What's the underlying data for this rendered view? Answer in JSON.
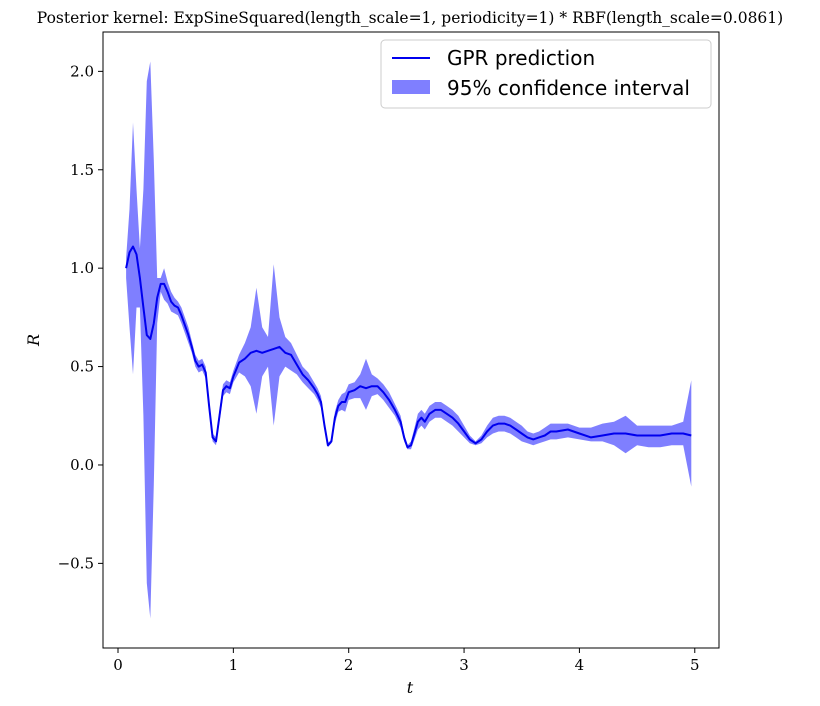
{
  "chart_data": {
    "type": "line",
    "title": "Posterior kernel: ExpSineSquared(length_scale=1, periodicity=1) * RBF(length_scale=0.0861)",
    "xlabel": "t",
    "ylabel": "R",
    "xlim": [
      -0.13,
      5.21
    ],
    "ylim": [
      -0.93,
      2.2
    ],
    "xticks": [
      0,
      1,
      2,
      3,
      4,
      5
    ],
    "yticks": [
      -0.5,
      0.0,
      0.5,
      1.0,
      1.5,
      2.0
    ],
    "xtick_labels": [
      "0",
      "1",
      "2",
      "3",
      "4",
      "5"
    ],
    "ytick_labels": [
      "−0.5",
      "0.0",
      "0.5",
      "1.0",
      "1.5",
      "2.0"
    ],
    "grid": false,
    "legend_position": "top-right",
    "series": [
      {
        "name": "GPR prediction",
        "kind": "line",
        "color": "#0000ee",
        "x": [
          0.07,
          0.1,
          0.13,
          0.16,
          0.19,
          0.22,
          0.25,
          0.28,
          0.31,
          0.34,
          0.37,
          0.4,
          0.43,
          0.46,
          0.49,
          0.52,
          0.55,
          0.58,
          0.61,
          0.64,
          0.67,
          0.7,
          0.73,
          0.76,
          0.79,
          0.82,
          0.85,
          0.88,
          0.91,
          0.94,
          0.97,
          1.0,
          1.05,
          1.1,
          1.15,
          1.2,
          1.25,
          1.3,
          1.35,
          1.4,
          1.45,
          1.5,
          1.55,
          1.6,
          1.65,
          1.7,
          1.73,
          1.76,
          1.79,
          1.82,
          1.85,
          1.88,
          1.91,
          1.94,
          1.97,
          2.0,
          2.05,
          2.1,
          2.15,
          2.2,
          2.25,
          2.3,
          2.35,
          2.4,
          2.45,
          2.48,
          2.51,
          2.54,
          2.57,
          2.6,
          2.63,
          2.66,
          2.7,
          2.75,
          2.8,
          2.85,
          2.9,
          2.95,
          3.0,
          3.05,
          3.1,
          3.15,
          3.2,
          3.25,
          3.3,
          3.35,
          3.4,
          3.45,
          3.5,
          3.55,
          3.6,
          3.65,
          3.7,
          3.75,
          3.8,
          3.9,
          4.0,
          4.1,
          4.2,
          4.3,
          4.4,
          4.5,
          4.6,
          4.7,
          4.8,
          4.9,
          4.97
        ],
        "y": [
          1.0,
          1.08,
          1.11,
          1.07,
          0.95,
          0.8,
          0.66,
          0.64,
          0.72,
          0.85,
          0.92,
          0.92,
          0.88,
          0.83,
          0.81,
          0.8,
          0.76,
          0.71,
          0.66,
          0.6,
          0.53,
          0.5,
          0.51,
          0.47,
          0.3,
          0.14,
          0.12,
          0.25,
          0.38,
          0.4,
          0.39,
          0.45,
          0.52,
          0.54,
          0.57,
          0.58,
          0.57,
          0.58,
          0.59,
          0.6,
          0.57,
          0.56,
          0.51,
          0.46,
          0.43,
          0.39,
          0.36,
          0.32,
          0.2,
          0.1,
          0.12,
          0.24,
          0.3,
          0.32,
          0.32,
          0.37,
          0.38,
          0.4,
          0.39,
          0.4,
          0.4,
          0.37,
          0.33,
          0.28,
          0.22,
          0.14,
          0.09,
          0.1,
          0.16,
          0.22,
          0.24,
          0.22,
          0.26,
          0.28,
          0.28,
          0.26,
          0.24,
          0.21,
          0.17,
          0.13,
          0.11,
          0.13,
          0.17,
          0.2,
          0.21,
          0.21,
          0.2,
          0.18,
          0.16,
          0.14,
          0.13,
          0.14,
          0.15,
          0.17,
          0.17,
          0.18,
          0.16,
          0.14,
          0.15,
          0.16,
          0.16,
          0.15,
          0.15,
          0.15,
          0.16,
          0.16,
          0.15
        ]
      },
      {
        "name": "95% confidence interval",
        "kind": "band",
        "color": "#0000ff",
        "opacity": 0.5,
        "x": [
          0.07,
          0.1,
          0.13,
          0.16,
          0.19,
          0.22,
          0.25,
          0.28,
          0.31,
          0.34,
          0.37,
          0.4,
          0.43,
          0.46,
          0.49,
          0.52,
          0.55,
          0.58,
          0.61,
          0.64,
          0.67,
          0.7,
          0.73,
          0.76,
          0.79,
          0.82,
          0.85,
          0.88,
          0.91,
          0.94,
          0.97,
          1.0,
          1.05,
          1.1,
          1.15,
          1.2,
          1.25,
          1.3,
          1.35,
          1.4,
          1.45,
          1.5,
          1.55,
          1.6,
          1.65,
          1.7,
          1.73,
          1.76,
          1.79,
          1.82,
          1.85,
          1.88,
          1.91,
          1.94,
          1.97,
          2.0,
          2.05,
          2.1,
          2.15,
          2.2,
          2.25,
          2.3,
          2.35,
          2.4,
          2.45,
          2.48,
          2.51,
          2.54,
          2.57,
          2.6,
          2.63,
          2.66,
          2.7,
          2.75,
          2.8,
          2.85,
          2.9,
          2.95,
          3.0,
          3.05,
          3.1,
          3.15,
          3.2,
          3.25,
          3.3,
          3.35,
          3.4,
          3.45,
          3.5,
          3.55,
          3.6,
          3.65,
          3.7,
          3.75,
          3.8,
          3.9,
          4.0,
          4.1,
          4.2,
          4.3,
          4.4,
          4.5,
          4.6,
          4.7,
          4.8,
          4.9,
          4.97
        ],
        "upper": [
          1.05,
          1.3,
          1.74,
          1.4,
          1.1,
          1.4,
          1.95,
          2.05,
          1.55,
          0.95,
          0.95,
          1.0,
          0.93,
          0.88,
          0.85,
          0.83,
          0.8,
          0.75,
          0.7,
          0.63,
          0.56,
          0.53,
          0.54,
          0.5,
          0.33,
          0.16,
          0.14,
          0.28,
          0.41,
          0.43,
          0.42,
          0.48,
          0.56,
          0.62,
          0.7,
          0.9,
          0.7,
          0.65,
          1.02,
          0.75,
          0.65,
          0.62,
          0.56,
          0.5,
          0.47,
          0.42,
          0.39,
          0.35,
          0.22,
          0.11,
          0.13,
          0.27,
          0.33,
          0.36,
          0.37,
          0.41,
          0.42,
          0.46,
          0.54,
          0.46,
          0.44,
          0.41,
          0.37,
          0.31,
          0.25,
          0.16,
          0.1,
          0.12,
          0.19,
          0.26,
          0.28,
          0.26,
          0.3,
          0.32,
          0.32,
          0.3,
          0.28,
          0.25,
          0.2,
          0.15,
          0.12,
          0.15,
          0.2,
          0.24,
          0.25,
          0.25,
          0.24,
          0.22,
          0.2,
          0.17,
          0.16,
          0.17,
          0.19,
          0.21,
          0.21,
          0.21,
          0.19,
          0.19,
          0.21,
          0.22,
          0.25,
          0.2,
          0.2,
          0.2,
          0.2,
          0.22,
          0.43
        ]
      },
      {
        "name": "95% confidence interval lower",
        "kind": "band-lower",
        "lower": [
          0.95,
          0.7,
          0.46,
          0.8,
          0.8,
          0.25,
          -0.6,
          -0.78,
          -0.1,
          0.72,
          0.88,
          0.84,
          0.82,
          0.78,
          0.77,
          0.76,
          0.72,
          0.67,
          0.62,
          0.57,
          0.5,
          0.47,
          0.48,
          0.44,
          0.27,
          0.12,
          0.1,
          0.22,
          0.35,
          0.37,
          0.36,
          0.42,
          0.47,
          0.45,
          0.4,
          0.26,
          0.45,
          0.5,
          0.2,
          0.45,
          0.5,
          0.48,
          0.46,
          0.42,
          0.39,
          0.36,
          0.33,
          0.29,
          0.18,
          0.09,
          0.11,
          0.21,
          0.27,
          0.28,
          0.27,
          0.33,
          0.34,
          0.34,
          0.28,
          0.35,
          0.36,
          0.33,
          0.29,
          0.25,
          0.19,
          0.12,
          0.08,
          0.08,
          0.13,
          0.18,
          0.2,
          0.18,
          0.22,
          0.24,
          0.24,
          0.22,
          0.2,
          0.17,
          0.14,
          0.11,
          0.1,
          0.11,
          0.14,
          0.16,
          0.17,
          0.17,
          0.16,
          0.14,
          0.12,
          0.11,
          0.1,
          0.11,
          0.12,
          0.13,
          0.13,
          0.14,
          0.13,
          0.12,
          0.12,
          0.1,
          0.06,
          0.1,
          0.09,
          0.09,
          0.1,
          0.1,
          -0.11
        ]
      }
    ],
    "legend": {
      "entries": [
        "GPR prediction",
        "95% confidence interval"
      ]
    }
  }
}
